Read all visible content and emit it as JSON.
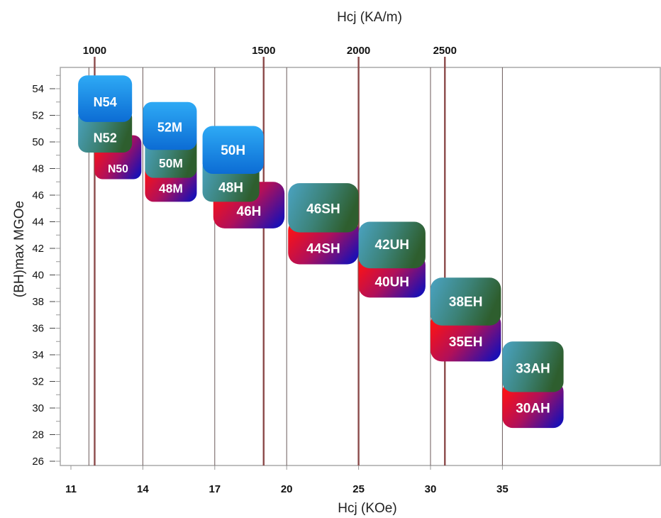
{
  "chart_data": {
    "type": "range-box",
    "top_axis_title": "Hcj (KA/m)",
    "x_axis_title": "Hcj (KOe)",
    "y_axis_title": "(BH)max MGOe",
    "x_ticks": [
      {
        "label": "11",
        "pos": 0.0
      },
      {
        "label": "14",
        "pos": 1.0
      },
      {
        "label": "17",
        "pos": 2.0
      },
      {
        "label": "20",
        "pos": 3.0
      },
      {
        "label": "25",
        "pos": 4.0
      },
      {
        "label": "30",
        "pos": 5.0
      },
      {
        "label": "35",
        "pos": 6.0
      }
    ],
    "top_ticks": [
      {
        "label": "1000",
        "pos": 0.33
      },
      {
        "label": "1500",
        "pos": 2.68
      },
      {
        "label": "2000",
        "pos": 4.0
      },
      {
        "label": "2500",
        "pos": 5.2
      }
    ],
    "y_range": [
      26,
      55
    ],
    "y_ticks": [
      26,
      28,
      30,
      32,
      34,
      36,
      38,
      40,
      42,
      44,
      46,
      48,
      50,
      52,
      54
    ],
    "grades": [
      {
        "name": "N50",
        "x_range": [
          0.33,
          0.98
        ],
        "y_range": [
          47.2,
          50.5
        ],
        "style": "red-purple",
        "text_y": 48.0
      },
      {
        "name": "N52",
        "x_range": [
          0.1,
          0.85
        ],
        "y_range": [
          49.2,
          52.5
        ],
        "style": "teal-green",
        "text_y": 50.3
      },
      {
        "name": "N54",
        "x_range": [
          0.1,
          0.85
        ],
        "y_range": [
          51.5,
          55.0
        ],
        "style": "blue",
        "text_y": 53.0
      },
      {
        "name": "48M",
        "x_range": [
          1.03,
          1.75
        ],
        "y_range": [
          45.5,
          48.6
        ],
        "style": "red-purple",
        "text_y": 46.5
      },
      {
        "name": "50M",
        "x_range": [
          1.03,
          1.75
        ],
        "y_range": [
          47.3,
          50.7
        ],
        "style": "teal-green",
        "text_y": 48.4
      },
      {
        "name": "52M",
        "x_range": [
          1.0,
          1.75
        ],
        "y_range": [
          49.4,
          53.0
        ],
        "style": "blue",
        "text_y": 51.1
      },
      {
        "name": "46H",
        "x_range": [
          1.98,
          2.97
        ],
        "y_range": [
          43.5,
          47.0
        ],
        "style": "red-purple",
        "text_y": 44.8
      },
      {
        "name": "48H",
        "x_range": [
          1.83,
          2.62
        ],
        "y_range": [
          45.5,
          48.8
        ],
        "style": "teal-green",
        "text_y": 46.6
      },
      {
        "name": "50H",
        "x_range": [
          1.83,
          2.68
        ],
        "y_range": [
          47.6,
          51.2
        ],
        "style": "blue",
        "text_y": 49.4
      },
      {
        "name": "44SH",
        "x_range": [
          3.02,
          4.0
        ],
        "y_range": [
          40.8,
          44.2
        ],
        "style": "red-purple",
        "text_y": 42.0
      },
      {
        "name": "46SH",
        "x_range": [
          3.02,
          4.0
        ],
        "y_range": [
          43.2,
          46.9
        ],
        "style": "teal-green",
        "text_y": 45.0
      },
      {
        "name": "40UH",
        "x_range": [
          4.0,
          4.93
        ],
        "y_range": [
          38.3,
          41.6
        ],
        "style": "red-purple",
        "text_y": 39.5
      },
      {
        "name": "42UH",
        "x_range": [
          4.0,
          4.93
        ],
        "y_range": [
          40.5,
          44.0
        ],
        "style": "teal-green",
        "text_y": 42.3
      },
      {
        "name": "35EH",
        "x_range": [
          5.0,
          5.98
        ],
        "y_range": [
          33.5,
          37.2
        ],
        "style": "red-purple",
        "text_y": 35.0
      },
      {
        "name": "38EH",
        "x_range": [
          5.0,
          5.98
        ],
        "y_range": [
          36.2,
          39.8
        ],
        "style": "teal-green",
        "text_y": 38.0
      },
      {
        "name": "30AH",
        "x_range": [
          6.0,
          6.85
        ],
        "y_range": [
          28.5,
          32.0
        ],
        "style": "red-purple",
        "text_y": 30.0
      },
      {
        "name": "33AH",
        "x_range": [
          6.0,
          6.85
        ],
        "y_range": [
          31.2,
          35.0
        ],
        "style": "teal-green",
        "text_y": 33.0
      }
    ],
    "colors": {
      "gridline": "#6b5a5a",
      "top_gridline": "#8b4a4a",
      "axis": "#999999",
      "blue": [
        "#0c6fd6",
        "#2fa9f2"
      ],
      "teal_green": [
        "#3e8faa",
        "#2f6a3a"
      ],
      "red_purple": [
        "#ff1010",
        "#1e10b0"
      ]
    }
  }
}
